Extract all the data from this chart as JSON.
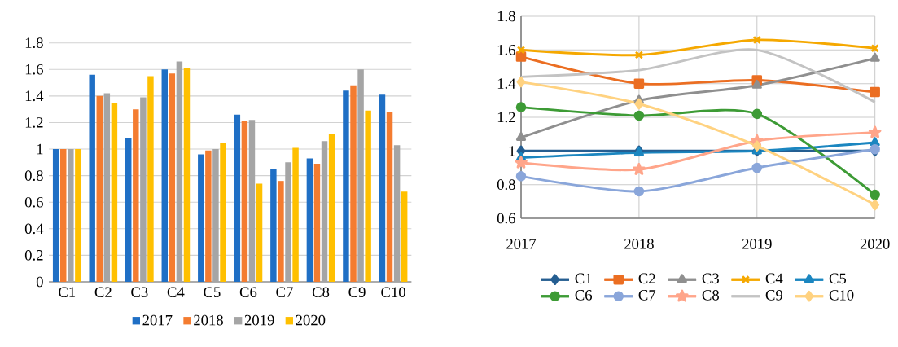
{
  "chart_data": [
    {
      "type": "bar",
      "categories": [
        "C1",
        "C2",
        "C3",
        "C4",
        "C5",
        "C6",
        "C7",
        "C8",
        "C9",
        "C10"
      ],
      "series": [
        {
          "name": "2017",
          "color": "#1f6fc5",
          "values": [
            1.0,
            1.56,
            1.08,
            1.6,
            0.96,
            1.26,
            0.85,
            0.93,
            1.44,
            1.41
          ]
        },
        {
          "name": "2018",
          "color": "#f47c30",
          "values": [
            1.0,
            1.4,
            1.3,
            1.57,
            0.99,
            1.21,
            0.76,
            0.89,
            1.48,
            1.28
          ]
        },
        {
          "name": "2019",
          "color": "#a5a5a5",
          "values": [
            1.0,
            1.42,
            1.39,
            1.66,
            1.0,
            1.22,
            0.9,
            1.06,
            1.6,
            1.03
          ]
        },
        {
          "name": "2020",
          "color": "#ffc000",
          "values": [
            1.0,
            1.35,
            1.55,
            1.61,
            1.05,
            0.74,
            1.01,
            1.11,
            1.29,
            0.68
          ]
        }
      ],
      "ylim": [
        0,
        1.8
      ],
      "yticks": [
        0,
        0.2,
        0.4,
        0.6,
        0.8,
        1,
        1.2,
        1.4,
        1.6,
        1.8
      ],
      "grid": "y",
      "legend": "bottom"
    },
    {
      "type": "line",
      "x": [
        2017,
        2018,
        2019,
        2020
      ],
      "series": [
        {
          "name": "C1",
          "color": "#255e91",
          "marker": "diamond",
          "values": [
            1.0,
            1.0,
            1.0,
            1.0
          ]
        },
        {
          "name": "C2",
          "color": "#eb6e22",
          "marker": "square",
          "values": [
            1.56,
            1.4,
            1.42,
            1.35
          ]
        },
        {
          "name": "C3",
          "color": "#8f8f8f",
          "marker": "triangle",
          "values": [
            1.08,
            1.3,
            1.39,
            1.55
          ]
        },
        {
          "name": "C4",
          "color": "#f5a800",
          "marker": "cross",
          "values": [
            1.6,
            1.57,
            1.66,
            1.61
          ]
        },
        {
          "name": "C5",
          "color": "#1b86c0",
          "marker": "triangle",
          "values": [
            0.96,
            0.99,
            1.0,
            1.05
          ]
        },
        {
          "name": "C6",
          "color": "#3d9b35",
          "marker": "circle",
          "values": [
            1.26,
            1.21,
            1.22,
            0.74
          ]
        },
        {
          "name": "C7",
          "color": "#8aa6da",
          "marker": "circle",
          "values": [
            0.85,
            0.76,
            0.9,
            1.01
          ]
        },
        {
          "name": "C8",
          "color": "#ffa58a",
          "marker": "star",
          "values": [
            0.93,
            0.89,
            1.06,
            1.11
          ]
        },
        {
          "name": "C9",
          "color": "#c3c3c3",
          "marker": "none",
          "values": [
            1.44,
            1.48,
            1.6,
            1.29
          ]
        },
        {
          "name": "C10",
          "color": "#ffd280",
          "marker": "diamond",
          "values": [
            1.41,
            1.28,
            1.03,
            0.68
          ]
        }
      ],
      "xlim": [
        2017,
        2020
      ],
      "xticks": [
        2017,
        2018,
        2019,
        2020
      ],
      "ylim": [
        0.6,
        1.8
      ],
      "yticks": [
        0.6,
        0.8,
        1,
        1.2,
        1.4,
        1.6,
        1.8
      ],
      "grid": true,
      "legend": "bottom"
    }
  ]
}
